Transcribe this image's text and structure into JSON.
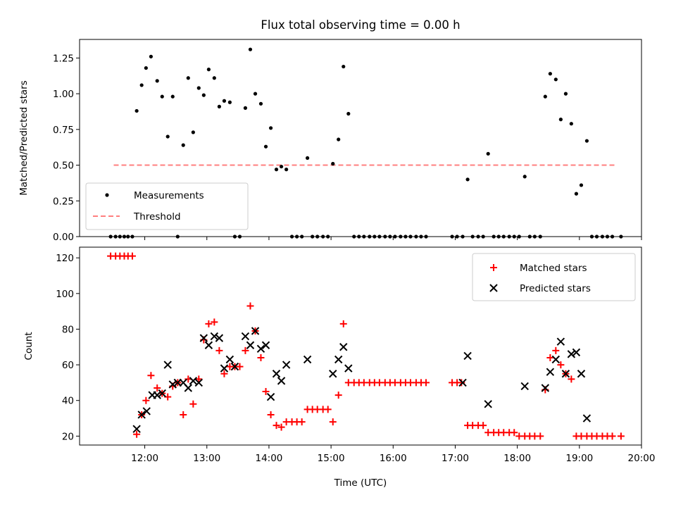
{
  "chart_data": [
    {
      "type": "scatter",
      "title": "Flux total observing time = 0.00 h",
      "xlabel": "",
      "ylabel": "Matched/Predicted stars",
      "ylim": [
        0,
        1.38
      ],
      "yticks": [
        "0.00",
        "0.25",
        "0.50",
        "0.75",
        "1.00",
        "1.25"
      ],
      "ytick_values": [
        0,
        0.25,
        0.5,
        0.75,
        1.0,
        1.25
      ],
      "legend_position": "lower-left",
      "series": [
        {
          "name": "Measurements",
          "marker": "dot",
          "color": "#000000",
          "x": [
            11.45,
            11.53,
            11.6,
            11.67,
            11.73,
            11.8,
            11.87,
            11.95,
            12.02,
            12.1,
            12.2,
            12.28,
            12.37,
            12.45,
            12.53,
            12.62,
            12.7,
            12.78,
            12.87,
            12.95,
            13.03,
            13.12,
            13.2,
            13.28,
            13.37,
            13.45,
            13.53,
            13.62,
            13.7,
            13.78,
            13.87,
            13.95,
            14.03,
            14.12,
            14.2,
            14.28,
            14.37,
            14.45,
            14.53,
            14.62,
            14.7,
            14.78,
            14.87,
            14.95,
            15.03,
            15.12,
            15.2,
            15.28,
            15.37,
            15.45,
            15.53,
            15.62,
            15.7,
            15.78,
            15.87,
            15.95,
            16.03,
            16.12,
            16.2,
            16.28,
            16.37,
            16.45,
            16.53,
            16.95,
            17.03,
            17.12,
            17.2,
            17.28,
            17.37,
            17.45,
            17.53,
            17.62,
            17.7,
            17.78,
            17.87,
            17.95,
            18.03,
            18.12,
            18.2,
            18.28,
            18.37,
            18.45,
            18.53,
            18.62,
            18.7,
            18.78,
            18.87,
            18.95,
            19.03,
            19.12,
            19.2,
            19.28,
            19.37,
            19.45,
            19.53,
            19.67
          ],
          "y": [
            0,
            0,
            0,
            0,
            0,
            0,
            0.88,
            1.06,
            1.18,
            1.26,
            1.09,
            0.98,
            0.7,
            0.98,
            0,
            0.64,
            1.11,
            0.73,
            1.04,
            0.99,
            1.17,
            1.11,
            0.91,
            0.95,
            0.94,
            0,
            0,
            0.9,
            1.31,
            1.0,
            0.93,
            0.63,
            0.76,
            0.47,
            0.49,
            0.47,
            0,
            0,
            0,
            0.55,
            0,
            0,
            0,
            0,
            0.51,
            0.68,
            1.19,
            0.86,
            0,
            0,
            0,
            0,
            0,
            0,
            0,
            0,
            0,
            0,
            0,
            0,
            0,
            0,
            0,
            0,
            0,
            0,
            0.4,
            0,
            0,
            0,
            0.58,
            0,
            0,
            0,
            0,
            0,
            0,
            0.42,
            0,
            0,
            0,
            0.98,
            1.14,
            1.1,
            0.82,
            1.0,
            0.79,
            0.3,
            0.36,
            0.67,
            0,
            0,
            0,
            0,
            0,
            0
          ]
        },
        {
          "name": "Threshold",
          "marker": "dashed-line",
          "color": "#ff7f7f",
          "x": [
            11.5,
            19.6
          ],
          "y": [
            0.5,
            0.5
          ]
        }
      ]
    },
    {
      "type": "scatter",
      "xlabel": "Time (UTC)",
      "ylabel": "Count",
      "ylim": [
        15,
        126
      ],
      "xlim": [
        10.95,
        20.0
      ],
      "yticks": [
        "20",
        "40",
        "60",
        "80",
        "100",
        "120"
      ],
      "ytick_values": [
        20,
        40,
        60,
        80,
        100,
        120
      ],
      "xticks": [
        "12:00",
        "13:00",
        "14:00",
        "15:00",
        "16:00",
        "17:00",
        "18:00",
        "19:00",
        "20:00"
      ],
      "xtick_values": [
        12,
        13,
        14,
        15,
        16,
        17,
        18,
        19,
        20
      ],
      "legend_position": "top-right",
      "series": [
        {
          "name": "Matched stars",
          "marker": "plus",
          "color": "#ff0000",
          "x": [
            11.45,
            11.53,
            11.6,
            11.67,
            11.73,
            11.8,
            11.87,
            11.95,
            12.02,
            12.1,
            12.2,
            12.28,
            12.37,
            12.45,
            12.53,
            12.62,
            12.7,
            12.78,
            12.87,
            12.95,
            13.03,
            13.12,
            13.2,
            13.28,
            13.37,
            13.45,
            13.53,
            13.62,
            13.7,
            13.78,
            13.87,
            13.95,
            14.03,
            14.12,
            14.2,
            14.28,
            14.37,
            14.45,
            14.53,
            14.62,
            14.7,
            14.78,
            14.87,
            14.95,
            15.03,
            15.12,
            15.2,
            15.28,
            15.37,
            15.45,
            15.53,
            15.62,
            15.7,
            15.78,
            15.87,
            15.95,
            16.03,
            16.12,
            16.2,
            16.28,
            16.37,
            16.45,
            16.53,
            16.95,
            17.03,
            17.1,
            17.2,
            17.28,
            17.37,
            17.45,
            17.53,
            17.62,
            17.7,
            17.78,
            17.87,
            17.95,
            18.03,
            18.12,
            18.2,
            18.28,
            18.37,
            18.45,
            18.53,
            18.62,
            18.7,
            18.78,
            18.87,
            18.95,
            19.03,
            19.12,
            19.2,
            19.28,
            19.37,
            19.45,
            19.53,
            19.67
          ],
          "y": [
            121,
            121,
            121,
            121,
            121,
            121,
            21,
            32,
            40,
            54,
            47,
            44,
            42,
            48,
            50,
            32,
            52,
            38,
            52,
            74,
            83,
            84,
            68,
            55,
            59,
            59,
            59,
            68,
            93,
            79,
            64,
            45,
            32,
            26,
            25,
            28,
            28,
            28,
            28,
            35,
            35,
            35,
            35,
            35,
            28,
            43,
            83,
            50,
            50,
            50,
            50,
            50,
            50,
            50,
            50,
            50,
            50,
            50,
            50,
            50,
            50,
            50,
            50,
            50,
            50,
            50,
            26,
            26,
            26,
            26,
            22,
            22,
            22,
            22,
            22,
            22,
            20,
            20,
            20,
            20,
            20,
            46,
            64,
            68,
            60,
            55,
            52,
            20,
            20,
            20,
            20,
            20,
            20,
            20,
            20,
            20
          ]
        },
        {
          "name": "Predicted stars",
          "marker": "x",
          "color": "#000000",
          "x": [
            11.87,
            11.95,
            12.03,
            12.12,
            12.2,
            12.28,
            12.37,
            12.45,
            12.53,
            12.62,
            12.7,
            12.78,
            12.87,
            12.95,
            13.03,
            13.12,
            13.2,
            13.28,
            13.37,
            13.45,
            13.62,
            13.7,
            13.78,
            13.87,
            13.95,
            14.03,
            14.12,
            14.2,
            14.28,
            14.62,
            15.03,
            15.12,
            15.2,
            15.28,
            17.12,
            17.2,
            17.53,
            18.12,
            18.45,
            18.53,
            18.62,
            18.7,
            18.78,
            18.87,
            18.95,
            19.03,
            19.12
          ],
          "y": [
            24,
            32,
            34,
            43,
            43,
            44,
            60,
            49,
            50,
            50,
            47,
            51,
            50,
            75,
            71,
            76,
            75,
            58,
            63,
            59,
            76,
            71,
            79,
            69,
            71,
            42,
            55,
            51,
            60,
            63,
            55,
            63,
            70,
            58,
            50,
            65,
            38,
            48,
            47,
            56,
            63,
            73,
            55,
            66,
            67,
            55,
            30
          ]
        }
      ]
    }
  ]
}
